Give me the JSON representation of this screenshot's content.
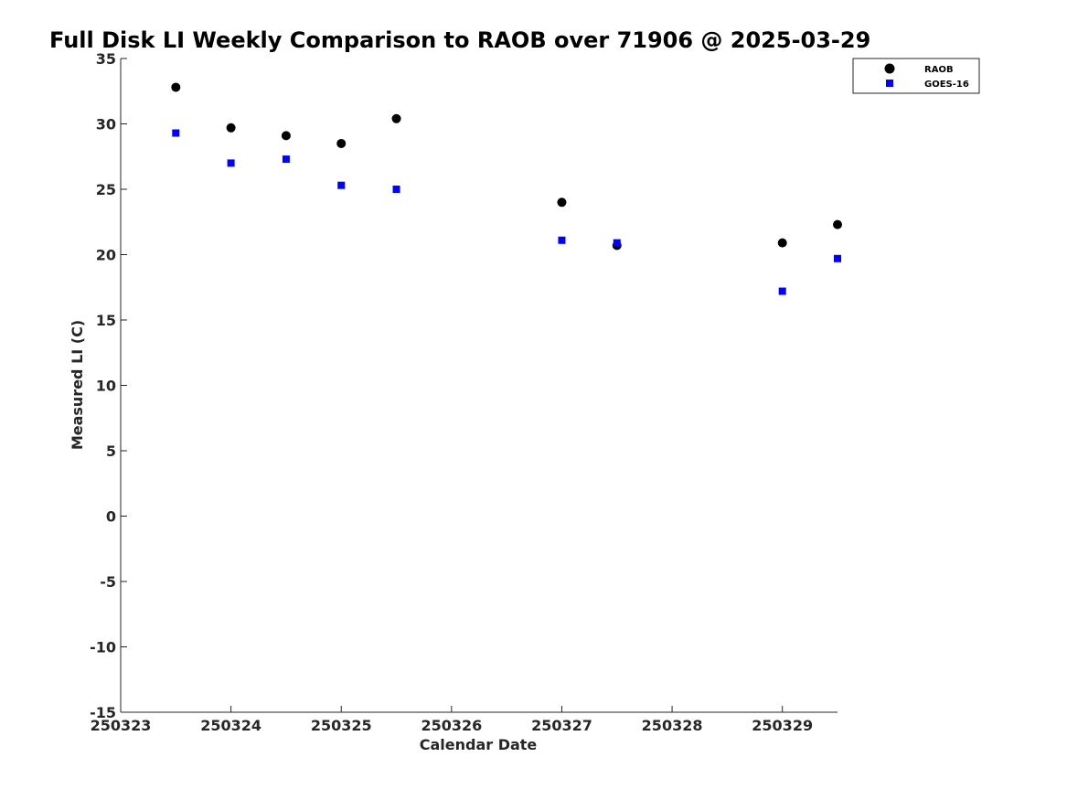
{
  "chart_data": {
    "type": "scatter",
    "title": "Full Disk LI Weekly Comparison to RAOB over 71906 @ 2025-03-29",
    "xlabel": "Calendar Date",
    "ylabel": "Measured LI (C)",
    "x_ticks": [
      "250323",
      "250324",
      "250325",
      "250326",
      "250327",
      "250328",
      "250329"
    ],
    "y_ticks": [
      35,
      30,
      25,
      20,
      15,
      10,
      5,
      0,
      -5,
      -10,
      -15
    ],
    "y_tick_labels": [
      "35",
      "30",
      "25",
      "20",
      "15",
      "10",
      "5",
      "0",
      "-5",
      "-10",
      "-15"
    ],
    "xlim": [
      "250323",
      "250329 12:00"
    ],
    "ylim": [
      -15,
      35
    ],
    "grid": false,
    "legend_position": "top-right",
    "series": [
      {
        "name": "RAOB",
        "marker": "circle",
        "color": "#000000",
        "points": [
          {
            "x": "250323 12:00",
            "y": 32.8
          },
          {
            "x": "250324 00:00",
            "y": 29.7
          },
          {
            "x": "250324 12:00",
            "y": 29.1
          },
          {
            "x": "250325 00:00",
            "y": 28.5
          },
          {
            "x": "250325 12:00",
            "y": 30.4
          },
          {
            "x": "250327 00:00",
            "y": 24.0
          },
          {
            "x": "250327 12:00",
            "y": 20.7
          },
          {
            "x": "250329 00:00",
            "y": 20.9
          },
          {
            "x": "250329 12:00",
            "y": 22.3
          }
        ]
      },
      {
        "name": "GOES-16",
        "marker": "square",
        "color": "#0000ff",
        "points": [
          {
            "x": "250323 12:00",
            "y": 29.3
          },
          {
            "x": "250324 00:00",
            "y": 27.0
          },
          {
            "x": "250324 12:00",
            "y": 27.3
          },
          {
            "x": "250325 00:00",
            "y": 25.3
          },
          {
            "x": "250325 12:00",
            "y": 25.0
          },
          {
            "x": "250327 00:00",
            "y": 21.1
          },
          {
            "x": "250327 12:00",
            "y": 20.9
          },
          {
            "x": "250329 00:00",
            "y": 17.2
          },
          {
            "x": "250329 12:00",
            "y": 19.7
          }
        ]
      }
    ]
  }
}
